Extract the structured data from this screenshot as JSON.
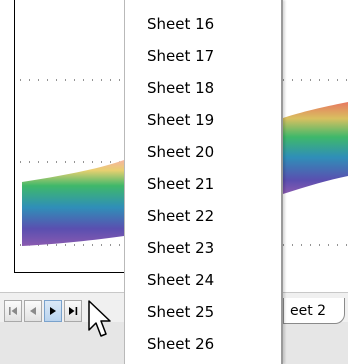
{
  "sheet_menu": {
    "items": [
      {
        "label": "Sheet 16"
      },
      {
        "label": "Sheet 17"
      },
      {
        "label": "Sheet 18"
      },
      {
        "label": "Sheet 19"
      },
      {
        "label": "Sheet 20"
      },
      {
        "label": "Sheet 21"
      },
      {
        "label": "Sheet 22"
      },
      {
        "label": "Sheet 23"
      },
      {
        "label": "Sheet 24"
      },
      {
        "label": "Sheet 25"
      },
      {
        "label": "Sheet 26"
      }
    ]
  },
  "tabbar": {
    "visible_tab_label": "eet 2",
    "nav_buttons": [
      "first-sheet-icon",
      "previous-sheet-icon",
      "next-sheet-icon",
      "last-sheet-icon"
    ]
  },
  "colors": {
    "tabbar_bg": "#f0f0f0",
    "menu_border": "#9a9a9a"
  }
}
